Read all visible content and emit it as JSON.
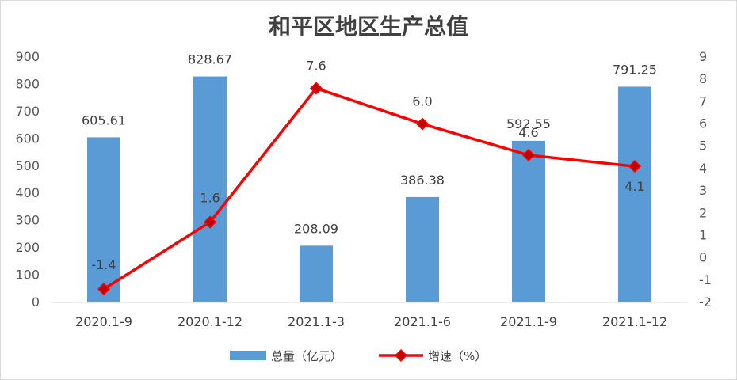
{
  "chart_data": {
    "type": "bar",
    "title": "和平区地区生产总值",
    "categories": [
      "2020.1-9",
      "2020.1-12",
      "2021.1-3",
      "2021.1-6",
      "2021.1-9",
      "2021.1-12"
    ],
    "series": [
      {
        "name": "总量（亿元）",
        "type": "bar",
        "axis": "left",
        "color": "#5b9bd5",
        "values": [
          605.61,
          828.67,
          208.09,
          386.38,
          592.55,
          791.25
        ],
        "labels": [
          "605.61",
          "828.67",
          "208.09",
          "386.38",
          "592.55",
          "791.25"
        ]
      },
      {
        "name": "增速（%）",
        "type": "line",
        "axis": "right",
        "color": "#ff0000",
        "marker_color": "#c00000",
        "values": [
          -1.4,
          1.6,
          7.6,
          6.0,
          4.6,
          4.1
        ],
        "labels": [
          "-1.4",
          "1.6",
          "7.6",
          "6.0",
          "4.6",
          "4.1"
        ]
      }
    ],
    "ylim_left": [
      0,
      900
    ],
    "yticks_left": [
      0,
      100,
      200,
      300,
      400,
      500,
      600,
      700,
      800,
      900
    ],
    "ylim_right": [
      -2,
      9
    ],
    "yticks_right": [
      -2,
      -1,
      0,
      1,
      2,
      3,
      4,
      5,
      6,
      7,
      8,
      9
    ],
    "grid": false,
    "legend": "bottom"
  }
}
